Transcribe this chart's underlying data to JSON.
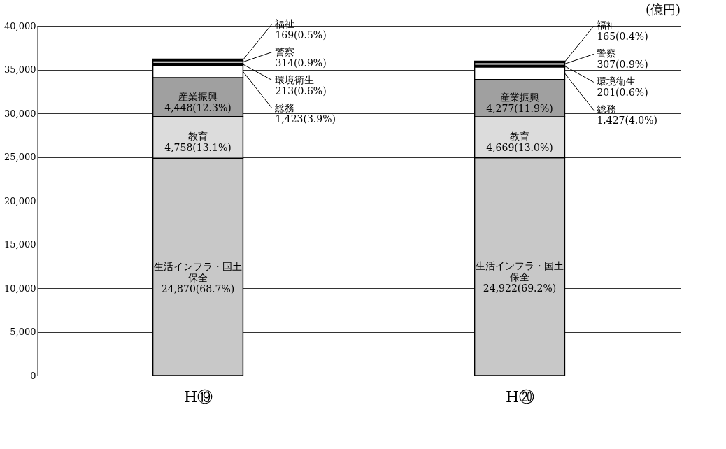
{
  "chart_data": {
    "type": "bar",
    "stacked": true,
    "categories": [
      "H⑲",
      "H⑳"
    ],
    "series": [
      {
        "name": "生活インフラ・国土保全",
        "color": "#c8c8c8",
        "values": [
          24870,
          24922
        ],
        "value_labels": [
          "24,870(68.7%)",
          "24,922(69.2%)"
        ]
      },
      {
        "name": "教育",
        "color": "#dcdcdc",
        "values": [
          4758,
          4669
        ],
        "value_labels": [
          "4,758(13.1%)",
          "4,669(13.0%)"
        ]
      },
      {
        "name": "産業振興",
        "color": "#a0a0a0",
        "values": [
          4448,
          4277
        ],
        "value_labels": [
          "4,448(12.3%)",
          "4,277(11.9%)"
        ]
      },
      {
        "name": "総務",
        "color": "#ffffff",
        "values": [
          1423,
          1427
        ],
        "value_labels": [
          "1,423(3.9%)",
          "1,427(4.0%)"
        ]
      },
      {
        "name": "環境衛生",
        "color": "#000000",
        "values": [
          213,
          201
        ],
        "value_labels": [
          "213(0.6%)",
          "201(0.6%)"
        ]
      },
      {
        "name": "警察",
        "color": "#ffffff",
        "values": [
          314,
          307
        ],
        "value_labels": [
          "314(0.9%)",
          "307(0.9%)"
        ]
      },
      {
        "name": "福祉",
        "color": "#000000",
        "values": [
          169,
          165
        ],
        "value_labels": [
          "169(0.5%)",
          "165(0.4%)"
        ]
      }
    ],
    "ylim": [
      0,
      40000
    ],
    "yticks": [
      0,
      {
        "value": 5000,
        "label": "5,000"
      },
      {
        "value": 10000,
        "label": "10,000"
      },
      {
        "value": 15000,
        "label": "15,000"
      },
      {
        "value": 20000,
        "label": "20,000"
      },
      {
        "value": 25000,
        "label": "25,000"
      },
      {
        "value": 30000,
        "label": "30,000"
      },
      {
        "value": 35000,
        "label": "35,000"
      },
      {
        "value": 40000,
        "label": "40,000"
      }
    ],
    "grid": "y",
    "legend": false,
    "annotations": [
      "(億円)"
    ]
  }
}
